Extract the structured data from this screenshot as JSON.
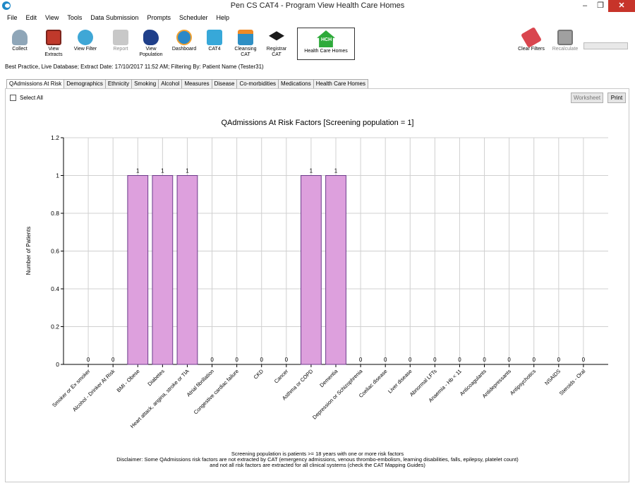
{
  "window": {
    "title": "Pen CS CAT4 - Program View Health Care Homes",
    "controls": [
      "–",
      "❐",
      "✕"
    ]
  },
  "menu": [
    "File",
    "Edit",
    "View",
    "Tools",
    "Data Submission",
    "Prompts",
    "Scheduler",
    "Help"
  ],
  "toolbar": {
    "collect": "Collect",
    "view_extracts": "View\nExtracts",
    "view_filter": "View Filter",
    "report": "Report",
    "view_population": "View\nPopulation",
    "dashboard": "Dashboard",
    "cat4": "CAT4",
    "cleansing_cat": "Cleansing\nCAT",
    "registrar_cat": "Registrar\nCAT",
    "health_care_homes": "Health Care Homes",
    "hch_badge": "HCH",
    "clear_filters": "Clear Filters",
    "recalculate": "Recalculate"
  },
  "status_line": "Best Practice, Live Database; Extract Date: 17/10/2017 11:52 AM; Filtering By: Patient Name (Tester31)",
  "tabs": [
    "QAdmissions At Risk",
    "Demographics",
    "Ethnicity",
    "Smoking",
    "Alcohol",
    "Measures",
    "Disease",
    "Co-morbidities",
    "Medications",
    "Health Care Homes"
  ],
  "panel": {
    "select_all": "Select All",
    "worksheet_button": "Worksheet",
    "print_button": "Print"
  },
  "chart_data": {
    "type": "bar",
    "title": "QAdmissions At Risk Factors [Screening population = 1]",
    "xlabel": "",
    "ylabel": "Number of Patients",
    "ylim": [
      0,
      1.2
    ],
    "yticks": [
      "0",
      "0.2",
      "0.4",
      "0.6",
      "0.8",
      "1",
      "1.2"
    ],
    "grid": true,
    "bar_color": "#dda0dd",
    "categories": [
      "Smoker or Ex smoker",
      "Alcohol - Drinker At Risk",
      "BMI - Obese",
      "Diabetes",
      "Heart attack, angina, stroke or TIA",
      "Atrial fibrillation",
      "Congestive cardiac failure",
      "CKD",
      "Cancer",
      "Asthma or COPD",
      "Dementia",
      "Depression or Schizophrenia",
      "Coeliac disease",
      "Liver disease",
      "Abnormal LFTs",
      "Anaemia - Hb < 11",
      "Anticoagulants",
      "Antidepressants",
      "Antipsychotics",
      "NSAIDS",
      "Steroids - Oral"
    ],
    "values": [
      0,
      0,
      1,
      1,
      1,
      0,
      0,
      0,
      0,
      1,
      1,
      0,
      0,
      0,
      0,
      0,
      0,
      0,
      0,
      0,
      0
    ],
    "data_labels": [
      "0",
      "0",
      "1",
      "1",
      "1",
      "0",
      "0",
      "0",
      "0",
      "1",
      "1",
      "0",
      "0",
      "0",
      "0",
      "0",
      "0",
      "0",
      "0",
      "0",
      "0"
    ]
  },
  "footer": {
    "line1": "Screening population is patients >= 18 years with one or more risk factors",
    "line2": "Disclaimer: Some QAdmissions risk factors are not extracted by CAT (emergency admissions, venous thrombo-embolism, learning disabilities, falls, epilepsy, platelet count)",
    "line3": "and not all risk factors are extracted for all clinical systems (check the CAT Mapping Guides)"
  }
}
